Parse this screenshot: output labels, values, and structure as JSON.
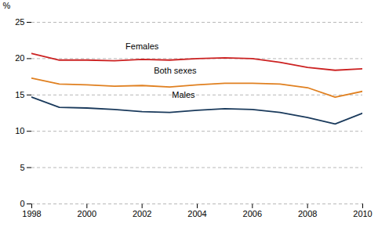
{
  "chart_data": {
    "type": "line",
    "ylabel": "%",
    "x": [
      1998,
      1999,
      2000,
      2001,
      2002,
      2003,
      2004,
      2005,
      2006,
      2007,
      2008,
      2009,
      2010
    ],
    "series": [
      {
        "color": "#cc2222",
        "values": [
          20.7,
          19.8,
          19.8,
          19.7,
          19.9,
          19.8,
          20.0,
          20.1,
          20.0,
          19.5,
          18.8,
          18.4,
          18.6
        ]
      },
      {
        "color": "#e08020",
        "values": [
          17.3,
          16.5,
          16.4,
          16.2,
          16.3,
          16.1,
          16.4,
          16.6,
          16.6,
          16.5,
          16.0,
          14.7,
          15.5
        ]
      },
      {
        "color": "#1a3a5c",
        "values": [
          14.7,
          13.3,
          13.2,
          13.0,
          12.7,
          12.6,
          12.9,
          13.1,
          13.0,
          12.6,
          11.9,
          11.0,
          12.5
        ]
      }
    ],
    "annotations": [
      {
        "text": "Females",
        "x": 2002.0,
        "y": 21.3
      },
      {
        "text": "Both sexes",
        "x": 2003.2,
        "y": 17.9
      },
      {
        "text": "Males",
        "x": 2003.5,
        "y": 14.6
      }
    ],
    "xlim": [
      1998,
      2010
    ],
    "xticks": [
      1998,
      2000,
      2002,
      2004,
      2006,
      2008,
      2010
    ],
    "ylim": [
      0,
      25
    ],
    "yticks": [
      0,
      5,
      10,
      15,
      20,
      25
    ],
    "grid": true
  }
}
